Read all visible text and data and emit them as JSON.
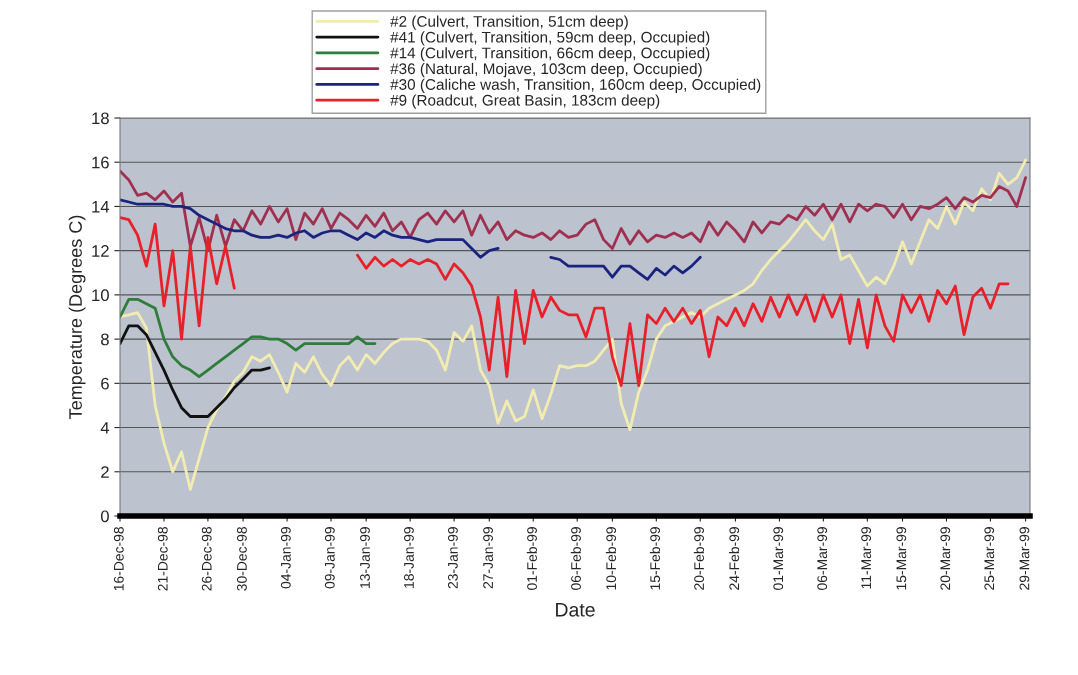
{
  "chart_data": {
    "type": "line",
    "xlabel": "Date",
    "ylabel": "Temperature (Degrees C)",
    "x": [
      "1998-12-16",
      "1998-12-17",
      "1998-12-18",
      "1998-12-19",
      "1998-12-20",
      "1998-12-21",
      "1998-12-22",
      "1998-12-23",
      "1998-12-24",
      "1998-12-25",
      "1998-12-26",
      "1998-12-27",
      "1998-12-28",
      "1998-12-29",
      "1998-12-30",
      "1998-12-31",
      "1999-01-01",
      "1999-01-02",
      "1999-01-03",
      "1999-01-04",
      "1999-01-05",
      "1999-01-06",
      "1999-01-07",
      "1999-01-08",
      "1999-01-09",
      "1999-01-10",
      "1999-01-11",
      "1999-01-12",
      "1999-01-13",
      "1999-01-14",
      "1999-01-15",
      "1999-01-16",
      "1999-01-17",
      "1999-01-18",
      "1999-01-19",
      "1999-01-20",
      "1999-01-21",
      "1999-01-22",
      "1999-01-23",
      "1999-01-24",
      "1999-01-25",
      "1999-01-26",
      "1999-01-27",
      "1999-01-28",
      "1999-01-29",
      "1999-01-30",
      "1999-01-31",
      "1999-02-01",
      "1999-02-02",
      "1999-02-03",
      "1999-02-04",
      "1999-02-05",
      "1999-02-06",
      "1999-02-07",
      "1999-02-08",
      "1999-02-09",
      "1999-02-10",
      "1999-02-11",
      "1999-02-12",
      "1999-02-13",
      "1999-02-14",
      "1999-02-15",
      "1999-02-16",
      "1999-02-17",
      "1999-02-18",
      "1999-02-19",
      "1999-02-20",
      "1999-02-21",
      "1999-02-22",
      "1999-02-23",
      "1999-02-24",
      "1999-02-25",
      "1999-02-26",
      "1999-02-27",
      "1999-02-28",
      "1999-03-01",
      "1999-03-02",
      "1999-03-03",
      "1999-03-04",
      "1999-03-05",
      "1999-03-06",
      "1999-03-07",
      "1999-03-08",
      "1999-03-09",
      "1999-03-10",
      "1999-03-11",
      "1999-03-12",
      "1999-03-13",
      "1999-03-14",
      "1999-03-15",
      "1999-03-16",
      "1999-03-17",
      "1999-03-18",
      "1999-03-19",
      "1999-03-20",
      "1999-03-21",
      "1999-03-22",
      "1999-03-23",
      "1999-03-24",
      "1999-03-25",
      "1999-03-26",
      "1999-03-27",
      "1999-03-28",
      "1999-03-29"
    ],
    "series": [
      {
        "name": "#2 (Culvert, Transition, 51cm deep)",
        "color": "#f2ecb0",
        "values": [
          9.0,
          9.1,
          9.2,
          8.5,
          5.0,
          3.3,
          2.0,
          2.9,
          1.2,
          2.6,
          4.0,
          4.8,
          5.4,
          6.1,
          6.5,
          7.2,
          7.0,
          7.3,
          6.5,
          5.6,
          6.9,
          6.5,
          7.2,
          6.4,
          5.9,
          6.8,
          7.2,
          6.6,
          7.3,
          6.9,
          7.4,
          7.8,
          8.0,
          8.0,
          8.0,
          7.9,
          7.5,
          6.6,
          8.3,
          7.9,
          8.6,
          6.6,
          5.9,
          4.2,
          5.2,
          4.3,
          4.5,
          5.7,
          4.4,
          5.5,
          6.8,
          6.7,
          6.8,
          6.8,
          7.0,
          7.5,
          8.0,
          5.1,
          3.9,
          5.6,
          6.6,
          8.0,
          8.6,
          8.8,
          9.0,
          9.2,
          9.0,
          9.4,
          9.6,
          9.8,
          10.0,
          10.2,
          10.5,
          11.1,
          11.6,
          12.0,
          12.4,
          12.9,
          13.4,
          12.9,
          12.5,
          13.2,
          11.6,
          11.8,
          11.1,
          10.4,
          10.8,
          10.5,
          11.3,
          12.4,
          11.4,
          12.4,
          13.4,
          13.0,
          14.0,
          13.2,
          14.2,
          13.8,
          14.8,
          14.3,
          15.5,
          15.0,
          15.3,
          16.1
        ]
      },
      {
        "name": "#41 (Culvert, Transition, 59cm deep, Occupied)",
        "color": "#111111",
        "x": [
          "1998-12-16",
          "1998-12-17",
          "1998-12-18",
          "1998-12-19",
          "1998-12-20",
          "1998-12-21",
          "1998-12-22",
          "1998-12-23",
          "1998-12-24",
          "1998-12-25",
          "1998-12-26",
          "1998-12-27",
          "1998-12-28",
          "1998-12-29",
          "1998-12-30",
          "1998-12-31",
          "1999-01-01",
          "1999-01-02"
        ],
        "values": [
          7.8,
          8.6,
          8.6,
          8.2,
          7.4,
          6.6,
          5.7,
          4.9,
          4.5,
          4.5,
          4.5,
          4.9,
          5.3,
          5.8,
          6.2,
          6.6,
          6.6,
          6.7
        ]
      },
      {
        "name": "#14 (Culvert, Transition, 66cm deep, Occupied)",
        "color": "#2e7d3a",
        "x": [
          "1998-12-16",
          "1998-12-17",
          "1998-12-18",
          "1998-12-19",
          "1998-12-20",
          "1998-12-21",
          "1998-12-22",
          "1998-12-23",
          "1998-12-24",
          "1998-12-25",
          "1998-12-26",
          "1998-12-27",
          "1998-12-28",
          "1998-12-29",
          "1998-12-30",
          "1998-12-31",
          "1999-01-01",
          "1999-01-02",
          "1999-01-03",
          "1999-01-04",
          "1999-01-05",
          "1999-01-06",
          "1999-01-07",
          "1999-01-08",
          "1999-01-09",
          "1999-01-10",
          "1999-01-11",
          "1999-01-12",
          "1999-01-13",
          "1999-01-14"
        ],
        "values": [
          9.0,
          9.8,
          9.8,
          9.6,
          9.4,
          8.0,
          7.2,
          6.8,
          6.6,
          6.3,
          6.6,
          6.9,
          7.2,
          7.5,
          7.8,
          8.1,
          8.1,
          8.0,
          8.0,
          7.8,
          7.5,
          7.8,
          7.8,
          7.8,
          7.8,
          7.8,
          7.8,
          8.1,
          7.8,
          7.8
        ]
      },
      {
        "name": "#36 (Natural, Mojave, 103cm deep, Occupied)",
        "color": "#a0304f",
        "values": [
          15.6,
          15.2,
          14.5,
          14.6,
          14.3,
          14.7,
          14.2,
          14.6,
          12.2,
          13.5,
          12.0,
          13.6,
          12.2,
          13.4,
          12.9,
          13.8,
          13.2,
          14.0,
          13.3,
          13.9,
          12.5,
          13.7,
          13.2,
          13.9,
          13.0,
          13.7,
          13.4,
          13.0,
          13.6,
          13.1,
          13.7,
          12.9,
          13.3,
          12.6,
          13.4,
          13.7,
          13.2,
          13.8,
          13.3,
          13.8,
          12.7,
          13.6,
          12.8,
          13.3,
          12.5,
          12.9,
          12.7,
          12.6,
          12.8,
          12.5,
          12.9,
          12.6,
          12.7,
          13.2,
          13.4,
          12.5,
          12.1,
          13.0,
          12.3,
          12.9,
          12.4,
          12.7,
          12.6,
          12.8,
          12.6,
          12.8,
          12.4,
          13.3,
          12.7,
          13.3,
          12.9,
          12.4,
          13.3,
          12.8,
          13.3,
          13.2,
          13.6,
          13.4,
          14.0,
          13.6,
          14.1,
          13.4,
          14.1,
          13.3,
          14.1,
          13.8,
          14.1,
          14.0,
          13.5,
          14.1,
          13.4,
          14.0,
          13.9,
          14.1,
          14.4,
          13.9,
          14.4,
          14.2,
          14.5,
          14.4,
          14.9,
          14.7,
          14.0,
          15.3
        ]
      },
      {
        "name": "#30 (Caliche wash, Transition, 160cm deep, Occupied)",
        "color": "#1a237e",
        "x": [
          "1998-12-16",
          "1998-12-17",
          "1998-12-18",
          "1998-12-19",
          "1998-12-20",
          "1998-12-21",
          "1998-12-22",
          "1998-12-23",
          "1998-12-24",
          "1998-12-25",
          "1998-12-26",
          "1998-12-27",
          "1998-12-28",
          "1998-12-29",
          "1998-12-30",
          "1998-12-31",
          "1999-01-01",
          "1999-01-02",
          "1999-01-03",
          "1999-01-04",
          "1999-01-05",
          "1999-01-06",
          "1999-01-07",
          "1999-01-08",
          "1999-01-09",
          "1999-01-10",
          "1999-01-11",
          "1999-01-12",
          "1999-01-13",
          "1999-01-14",
          "1999-01-15",
          "1999-01-16",
          "1999-01-17",
          "1999-01-18",
          "1999-01-19",
          "1999-01-20",
          "1999-01-21",
          "1999-01-22",
          "1999-01-23",
          "1999-01-24",
          "1999-01-25",
          "1999-01-26",
          "1999-01-27",
          "1999-01-28",
          "1999-01-31",
          "1999-02-03",
          "1999-02-04",
          "1999-02-05",
          "1999-02-06",
          "1999-02-07",
          "1999-02-08",
          "1999-02-09",
          "1999-02-10",
          "1999-02-11",
          "1999-02-12",
          "1999-02-13",
          "1999-02-14",
          "1999-02-15",
          "1999-02-16",
          "1999-02-17",
          "1999-02-18",
          "1999-02-19",
          "1999-02-20"
        ],
        "values": [
          14.3,
          14.2,
          14.1,
          14.1,
          14.1,
          14.1,
          14.0,
          14.0,
          13.9,
          13.6,
          13.4,
          13.2,
          13.0,
          12.9,
          12.9,
          12.7,
          12.6,
          12.6,
          12.7,
          12.6,
          12.8,
          12.9,
          12.6,
          12.8,
          12.9,
          12.9,
          12.7,
          12.5,
          12.8,
          12.6,
          12.9,
          12.7,
          12.6,
          12.6,
          12.5,
          12.4,
          12.5,
          12.5,
          12.5,
          12.5,
          12.1,
          11.7,
          12.0,
          12.1,
          null,
          11.7,
          11.6,
          11.3,
          11.3,
          11.3,
          11.3,
          11.3,
          10.8,
          11.3,
          11.3,
          11.0,
          10.7,
          11.2,
          10.9,
          11.3,
          11.0,
          11.3,
          11.7
        ]
      },
      {
        "name": "#9 (Roadcut, Great Basin, 183cm deep)",
        "color": "#e8202a",
        "x": [
          "1998-12-16",
          "1998-12-17",
          "1998-12-18",
          "1998-12-19",
          "1998-12-20",
          "1998-12-21",
          "1998-12-22",
          "1998-12-23",
          "1998-12-24",
          "1998-12-25",
          "1998-12-26",
          "1998-12-27",
          "1998-12-28",
          "1998-12-29",
          "1999-01-05",
          "1999-01-12",
          "1999-01-13",
          "1999-01-14",
          "1999-01-15",
          "1999-01-16",
          "1999-01-17",
          "1999-01-18",
          "1999-01-19",
          "1999-01-20",
          "1999-01-21",
          "1999-01-22",
          "1999-01-23",
          "1999-01-24",
          "1999-01-25",
          "1999-01-26",
          "1999-01-27",
          "1999-01-28",
          "1999-01-29",
          "1999-01-30",
          "1999-01-31",
          "1999-02-01",
          "1999-02-02",
          "1999-02-03",
          "1999-02-04",
          "1999-02-05",
          "1999-02-06",
          "1999-02-07",
          "1999-02-08",
          "1999-02-09",
          "1999-02-10",
          "1999-02-11",
          "1999-02-12",
          "1999-02-13",
          "1999-02-14",
          "1999-02-15",
          "1999-02-16",
          "1999-02-17",
          "1999-02-18",
          "1999-02-19",
          "1999-02-20",
          "1999-02-21",
          "1999-02-22",
          "1999-02-23",
          "1999-02-24",
          "1999-02-25",
          "1999-02-26",
          "1999-02-27",
          "1999-02-28",
          "1999-03-01",
          "1999-03-02",
          "1999-03-03",
          "1999-03-04",
          "1999-03-05",
          "1999-03-06",
          "1999-03-07",
          "1999-03-08",
          "1999-03-09",
          "1999-03-10",
          "1999-03-11",
          "1999-03-12",
          "1999-03-13",
          "1999-03-14",
          "1999-03-15",
          "1999-03-16",
          "1999-03-17",
          "1999-03-18",
          "1999-03-19",
          "1999-03-20",
          "1999-03-21",
          "1999-03-22",
          "1999-03-23",
          "1999-03-24",
          "1999-03-25",
          "1999-03-26",
          "1999-03-27"
        ],
        "values": [
          13.5,
          13.4,
          12.7,
          11.3,
          13.2,
          9.5,
          12.0,
          8.0,
          12.2,
          8.6,
          12.6,
          10.5,
          12.2,
          10.3,
          null,
          11.8,
          11.2,
          11.7,
          11.3,
          11.6,
          11.3,
          11.6,
          11.4,
          11.6,
          11.4,
          10.7,
          11.4,
          11.0,
          10.4,
          9.0,
          6.6,
          9.9,
          6.3,
          10.2,
          7.8,
          10.2,
          9.0,
          9.9,
          9.3,
          9.1,
          9.1,
          8.1,
          9.4,
          9.4,
          7.2,
          5.9,
          8.7,
          5.9,
          9.1,
          8.7,
          9.4,
          8.8,
          9.4,
          8.7,
          9.3,
          7.2,
          9.0,
          8.6,
          9.4,
          8.6,
          9.6,
          8.8,
          9.9,
          9.0,
          10.0,
          9.1,
          10.0,
          8.8,
          10.0,
          9.0,
          10.0,
          7.8,
          9.8,
          7.6,
          10.0,
          8.6,
          7.9,
          10.0,
          9.2,
          10.0,
          8.8,
          10.2,
          9.6,
          10.4,
          8.2,
          9.9,
          10.3,
          9.4,
          10.5,
          10.5
        ]
      }
    ],
    "xlim": [
      "1998-12-16",
      "1999-03-29T12:00"
    ],
    "xticks": [
      {
        "value": "1998-12-16",
        "label": "16-Dec-98"
      },
      {
        "value": "1998-12-21",
        "label": "21-Dec-98"
      },
      {
        "value": "1998-12-26",
        "label": "26-Dec-98"
      },
      {
        "value": "1998-12-30",
        "label": "30-Dec-98"
      },
      {
        "value": "1999-01-04",
        "label": "04-Jan-99"
      },
      {
        "value": "1999-01-09",
        "label": "09-Jan-99"
      },
      {
        "value": "1999-01-13",
        "label": "13-Jan-99"
      },
      {
        "value": "1999-01-18",
        "label": "18-Jan-99"
      },
      {
        "value": "1999-01-23",
        "label": "23-Jan-99"
      },
      {
        "value": "1999-01-27",
        "label": "27-Jan-99"
      },
      {
        "value": "1999-02-01",
        "label": "01-Feb-99"
      },
      {
        "value": "1999-02-06",
        "label": "06-Feb-99"
      },
      {
        "value": "1999-02-10",
        "label": "10-Feb-99"
      },
      {
        "value": "1999-02-15",
        "label": "15-Feb-99"
      },
      {
        "value": "1999-02-20",
        "label": "20-Feb-99"
      },
      {
        "value": "1999-02-24",
        "label": "24-Feb-99"
      },
      {
        "value": "1999-03-01",
        "label": "01-Mar-99"
      },
      {
        "value": "1999-03-06",
        "label": "06-Mar-99"
      },
      {
        "value": "1999-03-11",
        "label": "11-Mar-99"
      },
      {
        "value": "1999-03-15",
        "label": "15-Mar-99"
      },
      {
        "value": "1999-03-20",
        "label": "20-Mar-99"
      },
      {
        "value": "1999-03-25",
        "label": "25-Mar-99"
      },
      {
        "value": "1999-03-29",
        "label": "29-Mar-99"
      }
    ],
    "ylim": [
      0,
      18
    ],
    "yticks": [
      0,
      2,
      4,
      6,
      8,
      10,
      12,
      14,
      16,
      18
    ],
    "grid": "y",
    "legend": "top",
    "marker": "none",
    "line_style": "solid"
  }
}
